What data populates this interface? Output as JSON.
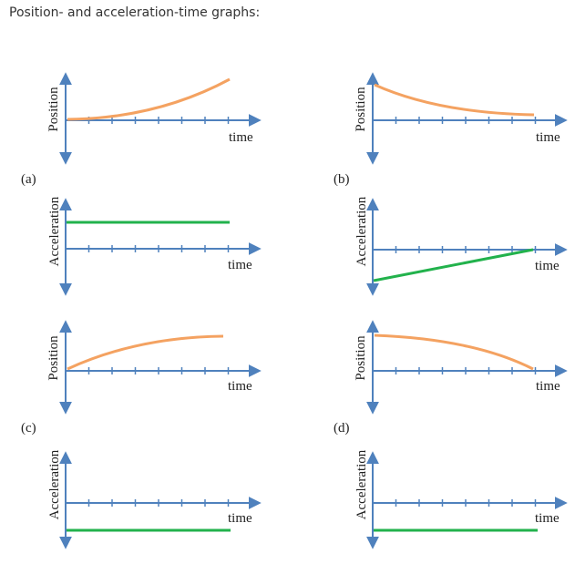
{
  "heading": "Position- and acceleration-time graphs:",
  "colors": {
    "axis": "#4f81bd",
    "position_curve": "#f4a261",
    "acceleration_line": "#22b24c",
    "text": "#222222"
  },
  "panels": [
    {
      "label": "(a)",
      "position": {
        "ylabel": "Position",
        "xlabel": "time",
        "shape": "concave-up-increasing"
      },
      "acceleration": {
        "ylabel": "Acceleration",
        "xlabel": "time",
        "shape": "constant-positive"
      }
    },
    {
      "label": "(b)",
      "position": {
        "ylabel": "Position",
        "xlabel": "time",
        "shape": "concave-up-decreasing"
      },
      "acceleration": {
        "ylabel": "Acceleration",
        "xlabel": "time",
        "shape": "linear-negative-to-zero"
      }
    },
    {
      "label": "(c)",
      "position": {
        "ylabel": "Position",
        "xlabel": "time",
        "shape": "concave-down-increasing"
      },
      "acceleration": {
        "ylabel": "Acceleration",
        "xlabel": "time",
        "shape": "constant-negative"
      }
    },
    {
      "label": "(d)",
      "position": {
        "ylabel": "Position",
        "xlabel": "time",
        "shape": "concave-down-decreasing"
      },
      "acceleration": {
        "ylabel": "Acceleration",
        "xlabel": "time",
        "shape": "constant-negative"
      }
    }
  ]
}
